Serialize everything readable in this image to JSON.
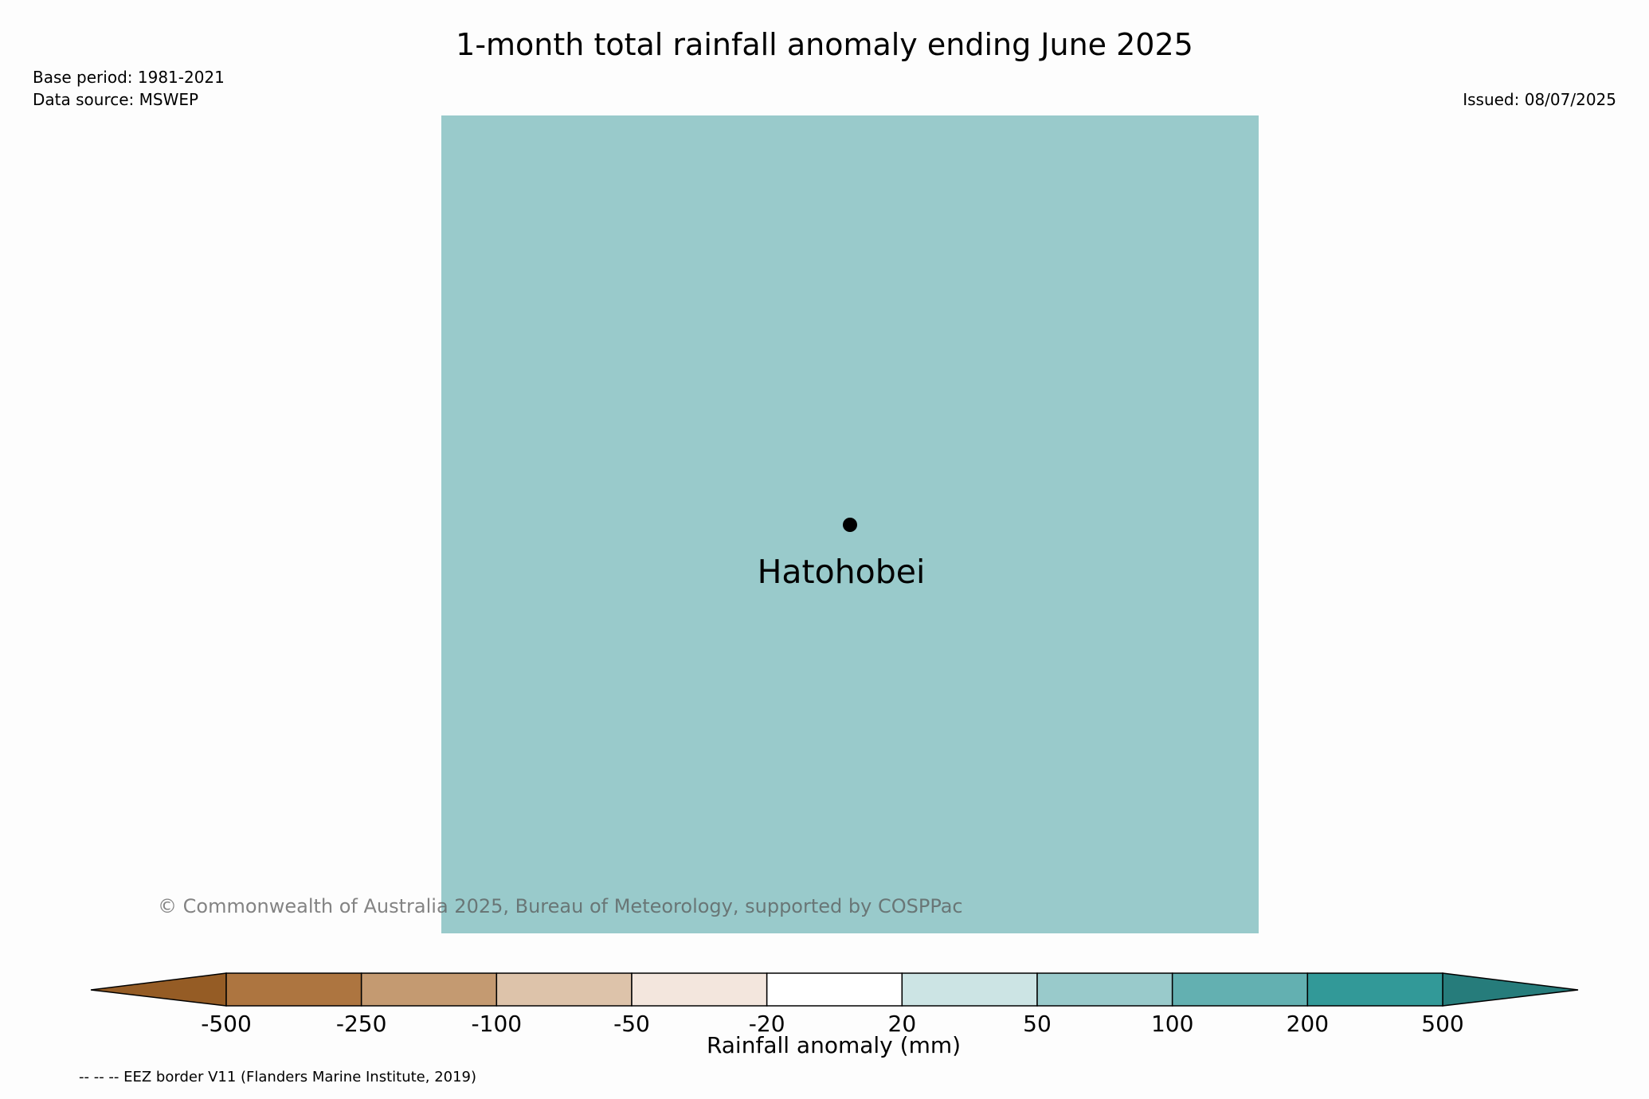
{
  "title": "1-month total rainfall anomaly ending June 2025",
  "base_period": "Base period: 1981-2021",
  "data_source": "Data source: MSWEP",
  "issued": "Issued: 08/07/2025",
  "map": {
    "place_name": "Hatohobei",
    "fill_color": "#99cacb"
  },
  "copyright": "© Commonwealth of Australia 2025, Bureau of Meteorology, supported by COSPPac",
  "colorbar": {
    "label": "Rainfall anomaly (mm)",
    "ticks": [
      "-500",
      "-250",
      "-100",
      "-50",
      "-20",
      "20",
      "50",
      "100",
      "200",
      "500"
    ],
    "colors": [
      "#ad7540",
      "#c49a71",
      "#ddc3aa",
      "#f3e6dd",
      "#ffffff",
      "#cce4e4",
      "#99cacb",
      "#63b0b1",
      "#329998"
    ],
    "extend_low_color": "#955c25",
    "extend_high_color": "#267c7b"
  },
  "footnote": "-- -- -- EEZ border V11 (Flanders Marine Institute, 2019)"
}
